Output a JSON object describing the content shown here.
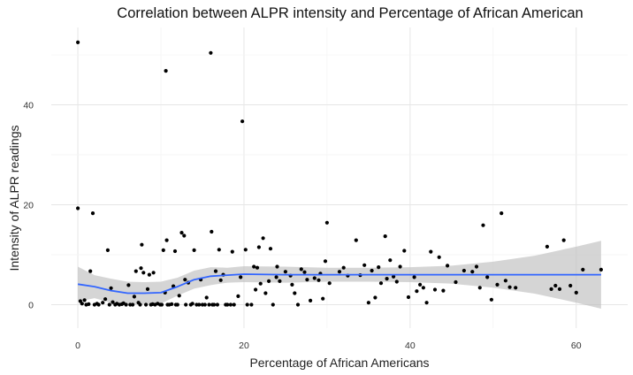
{
  "chart_data": {
    "type": "scatter",
    "title": "Correlation between ALPR intensity and Percentage of African American",
    "xlabel": "Percentage of African Americans",
    "ylabel": "Intensity of ALPR readings",
    "xlim": [
      -3.2,
      66.2
    ],
    "ylim": [
      -4.7,
      55.5
    ],
    "x_ticks": [
      0,
      20,
      40,
      60
    ],
    "y_ticks": [
      0,
      20,
      40
    ],
    "x_tick_labels": [
      "0",
      "20",
      "40",
      "60"
    ],
    "y_tick_labels": [
      "0",
      "20",
      "40"
    ],
    "grid": true,
    "legend": "none",
    "colors": {
      "points": "#000000",
      "smooth_line": "#3366FF",
      "ribbon": "#BEBEBE"
    },
    "series": [
      {
        "type": "points",
        "points": [
          [
            0.0,
            52.5
          ],
          [
            0.0,
            19.3
          ],
          [
            0.3,
            0.7
          ],
          [
            0.5,
            0.2
          ],
          [
            0.8,
            0.9
          ],
          [
            1.0,
            0.0
          ],
          [
            1.3,
            0.1
          ],
          [
            1.5,
            6.7
          ],
          [
            1.8,
            18.3
          ],
          [
            2.0,
            0.0
          ],
          [
            2.3,
            0.2
          ],
          [
            2.5,
            0.0
          ],
          [
            3.0,
            0.4
          ],
          [
            3.3,
            1.1
          ],
          [
            3.6,
            10.9
          ],
          [
            3.8,
            0.0
          ],
          [
            4.0,
            3.3
          ],
          [
            4.2,
            0.5
          ],
          [
            4.5,
            0.0
          ],
          [
            4.7,
            0.2
          ],
          [
            5.0,
            0.0
          ],
          [
            5.3,
            0.1
          ],
          [
            5.5,
            0.3
          ],
          [
            5.8,
            0.0
          ],
          [
            6.1,
            3.9
          ],
          [
            6.3,
            0.0
          ],
          [
            6.6,
            0.0
          ],
          [
            6.8,
            1.6
          ],
          [
            7.0,
            6.7
          ],
          [
            7.3,
            0.4
          ],
          [
            7.5,
            0.0
          ],
          [
            7.6,
            7.3
          ],
          [
            7.7,
            12.0
          ],
          [
            7.9,
            6.4
          ],
          [
            8.2,
            0.0
          ],
          [
            8.4,
            3.1
          ],
          [
            8.6,
            6.0
          ],
          [
            8.8,
            0.0
          ],
          [
            9.0,
            0.1
          ],
          [
            9.1,
            6.4
          ],
          [
            9.3,
            0.0
          ],
          [
            9.6,
            0.2
          ],
          [
            9.9,
            0.0
          ],
          [
            10.1,
            0.0
          ],
          [
            10.3,
            10.9
          ],
          [
            10.5,
            2.4
          ],
          [
            10.6,
            46.8
          ],
          [
            10.7,
            12.9
          ],
          [
            10.8,
            0.0
          ],
          [
            11.0,
            0.0
          ],
          [
            11.3,
            0.1
          ],
          [
            11.5,
            3.7
          ],
          [
            11.7,
            10.7
          ],
          [
            11.8,
            0.0
          ],
          [
            12.0,
            0.0
          ],
          [
            12.2,
            1.8
          ],
          [
            12.5,
            14.4
          ],
          [
            12.8,
            13.8
          ],
          [
            12.9,
            5.0
          ],
          [
            13.0,
            0.0
          ],
          [
            13.3,
            4.4
          ],
          [
            13.6,
            0.0
          ],
          [
            13.8,
            0.2
          ],
          [
            14.0,
            10.9
          ],
          [
            14.3,
            0.0
          ],
          [
            14.6,
            0.0
          ],
          [
            14.8,
            5.0
          ],
          [
            15.0,
            0.0
          ],
          [
            15.3,
            0.0
          ],
          [
            15.5,
            1.4
          ],
          [
            15.8,
            0.0
          ],
          [
            16.0,
            50.4
          ],
          [
            16.1,
            14.6
          ],
          [
            16.2,
            0.0
          ],
          [
            16.4,
            0.0
          ],
          [
            16.6,
            6.7
          ],
          [
            16.8,
            0.0
          ],
          [
            17.0,
            11.0
          ],
          [
            17.2,
            4.9
          ],
          [
            17.5,
            6.0
          ],
          [
            17.8,
            0.0
          ],
          [
            18.0,
            0.0
          ],
          [
            18.4,
            0.0
          ],
          [
            18.6,
            10.6
          ],
          [
            18.8,
            0.0
          ],
          [
            19.3,
            1.7
          ],
          [
            19.6,
            5.5
          ],
          [
            19.8,
            36.7
          ],
          [
            20.2,
            11.0
          ],
          [
            20.4,
            0.0
          ],
          [
            20.9,
            0.0
          ],
          [
            21.2,
            7.6
          ],
          [
            21.4,
            3.0
          ],
          [
            21.6,
            7.4
          ],
          [
            21.8,
            11.5
          ],
          [
            22.0,
            4.2
          ],
          [
            22.3,
            13.3
          ],
          [
            22.6,
            2.3
          ],
          [
            23.0,
            4.7
          ],
          [
            23.2,
            11.2
          ],
          [
            23.5,
            0.0
          ],
          [
            23.9,
            5.5
          ],
          [
            24.0,
            7.6
          ],
          [
            24.3,
            4.7
          ],
          [
            25.0,
            6.6
          ],
          [
            25.6,
            5.8
          ],
          [
            25.8,
            4.0
          ],
          [
            26.1,
            2.3
          ],
          [
            26.5,
            0.0
          ],
          [
            26.9,
            7.1
          ],
          [
            27.3,
            6.5
          ],
          [
            27.6,
            5.0
          ],
          [
            28.0,
            0.8
          ],
          [
            28.5,
            5.3
          ],
          [
            29.0,
            4.9
          ],
          [
            29.2,
            6.2
          ],
          [
            29.5,
            1.2
          ],
          [
            29.8,
            8.7
          ],
          [
            30.0,
            16.4
          ],
          [
            30.3,
            4.3
          ],
          [
            31.5,
            6.6
          ],
          [
            32.0,
            7.4
          ],
          [
            32.5,
            5.8
          ],
          [
            33.5,
            12.9
          ],
          [
            34.0,
            5.9
          ],
          [
            34.5,
            7.9
          ],
          [
            35.0,
            0.4
          ],
          [
            35.4,
            6.8
          ],
          [
            35.8,
            1.4
          ],
          [
            36.2,
            7.5
          ],
          [
            36.5,
            4.3
          ],
          [
            37.0,
            13.7
          ],
          [
            37.2,
            5.2
          ],
          [
            37.6,
            8.9
          ],
          [
            38.0,
            5.6
          ],
          [
            38.4,
            4.6
          ],
          [
            38.8,
            7.6
          ],
          [
            39.3,
            10.8
          ],
          [
            39.8,
            1.5
          ],
          [
            40.5,
            5.5
          ],
          [
            40.8,
            2.7
          ],
          [
            41.2,
            4.0
          ],
          [
            41.6,
            3.4
          ],
          [
            42.0,
            0.4
          ],
          [
            42.5,
            10.6
          ],
          [
            43.0,
            3.0
          ],
          [
            43.5,
            9.5
          ],
          [
            44.0,
            2.8
          ],
          [
            44.5,
            7.8
          ],
          [
            45.5,
            4.5
          ],
          [
            46.5,
            6.8
          ],
          [
            47.5,
            6.6
          ],
          [
            48.0,
            7.6
          ],
          [
            48.4,
            3.4
          ],
          [
            48.8,
            15.9
          ],
          [
            49.3,
            5.5
          ],
          [
            49.8,
            1.0
          ],
          [
            50.5,
            4.0
          ],
          [
            51.0,
            18.3
          ],
          [
            51.5,
            4.8
          ],
          [
            52.0,
            3.5
          ],
          [
            52.7,
            3.4
          ],
          [
            56.5,
            11.6
          ],
          [
            57.0,
            3.1
          ],
          [
            57.5,
            3.8
          ],
          [
            58.0,
            3.1
          ],
          [
            58.5,
            12.9
          ],
          [
            59.3,
            3.8
          ],
          [
            60.0,
            2.4
          ],
          [
            60.8,
            7.0
          ],
          [
            63.0,
            7.0
          ]
        ]
      },
      {
        "type": "smooth",
        "x": [
          0.0,
          2,
          4,
          6,
          8,
          10,
          12,
          14,
          16,
          18,
          20,
          25,
          30,
          35,
          40,
          45,
          50,
          55,
          60,
          63
        ],
        "y": [
          4.1,
          3.6,
          2.8,
          2.3,
          2.3,
          2.4,
          3.6,
          5.0,
          5.7,
          5.9,
          6.1,
          6.0,
          6.0,
          6.0,
          6.0,
          6.0,
          6.0,
          6.0,
          6.0,
          6.0
        ],
        "lower": [
          0.6,
          1.3,
          0.4,
          0.0,
          0.1,
          0.2,
          1.8,
          3.2,
          3.9,
          4.4,
          4.5,
          4.4,
          4.6,
          4.6,
          4.5,
          4.2,
          3.4,
          2.2,
          0.4,
          -0.8
        ],
        "upper": [
          7.6,
          5.9,
          5.2,
          4.6,
          4.5,
          4.6,
          5.4,
          6.8,
          7.5,
          7.4,
          7.7,
          7.6,
          7.4,
          7.4,
          7.5,
          7.8,
          8.6,
          9.8,
          11.6,
          12.8
        ]
      }
    ]
  }
}
